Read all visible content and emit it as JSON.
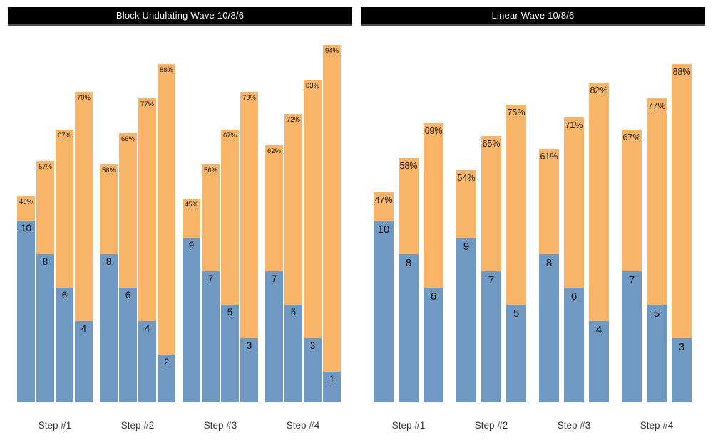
{
  "page": {
    "background": "#ffffff"
  },
  "colors": {
    "reps_bar": "#6f99c2",
    "pct_bar": "#f8b469",
    "title_bg": "#000000",
    "title_text": "#ffffff",
    "title_underline": "#4d4d4d",
    "bar_label_text": "#1a1a1a",
    "axis_label_text": "#333333"
  },
  "chart_data": [
    {
      "id": "block-undulating-wave",
      "type": "bar",
      "title": "Block Undulating Wave 10/8/6",
      "categories": [
        "Step #1",
        "Step #2",
        "Step #3",
        "Step #4"
      ],
      "series": [
        {
          "name": "reps",
          "color_role": "reps_bar",
          "values": [
            [
              10,
              8,
              6,
              4
            ],
            [
              8,
              6,
              4,
              2
            ],
            [
              9,
              7,
              5,
              3
            ],
            [
              7,
              5,
              3,
              1
            ]
          ]
        },
        {
          "name": "intensity_percent",
          "color_role": "pct_bar",
          "label_suffix": "%",
          "values": [
            [
              46,
              57,
              67,
              79
            ],
            [
              56,
              66,
              77,
              88
            ],
            [
              45,
              56,
              67,
              79
            ],
            [
              62,
              72,
              83,
              94
            ]
          ]
        }
      ],
      "legend": "none",
      "grid": false,
      "axes_visible": false
    },
    {
      "id": "linear-wave",
      "type": "bar",
      "title": "Linear Wave 10/8/6",
      "categories": [
        "Step #1",
        "Step #2",
        "Step #3",
        "Step #4"
      ],
      "series": [
        {
          "name": "reps",
          "color_role": "reps_bar",
          "values": [
            [
              10,
              8,
              6
            ],
            [
              9,
              7,
              5
            ],
            [
              8,
              6,
              4
            ],
            [
              7,
              5,
              3
            ]
          ]
        },
        {
          "name": "intensity_percent",
          "color_role": "pct_bar",
          "label_suffix": "%",
          "values": [
            [
              47,
              58,
              69
            ],
            [
              54,
              65,
              75
            ],
            [
              61,
              71,
              82
            ],
            [
              67,
              77,
              88
            ]
          ]
        }
      ],
      "legend": "none",
      "grid": false,
      "axes_visible": false
    }
  ]
}
